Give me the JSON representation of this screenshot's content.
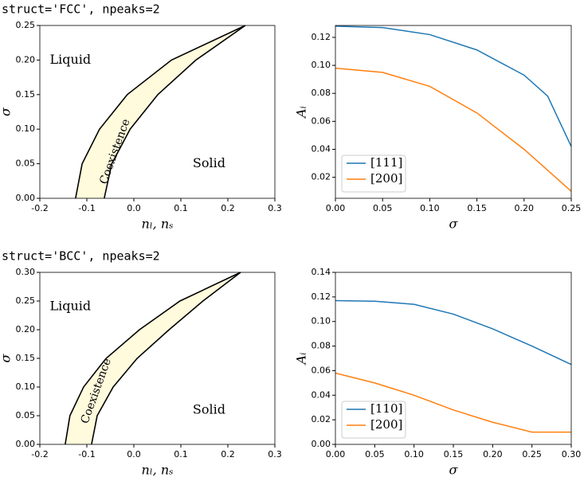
{
  "section_titles": [
    "struct='FCC', npeaks=2",
    "struct='BCC', npeaks=2"
  ],
  "chart_data": [
    {
      "type": "phase",
      "xlabel": "nₗ, nₛ",
      "ylabel": "σ",
      "xlim": [
        -0.2,
        0.3
      ],
      "ylim": [
        0,
        0.25
      ],
      "xticks": [
        -0.2,
        -0.1,
        {
          "value": 0,
          "label": "0.0"
        },
        0.1,
        0.2,
        0.3
      ],
      "yticks": [
        {
          "value": 0,
          "label": "0.00"
        },
        0.05,
        {
          "value": 0.1,
          "label": "0.10"
        },
        0.15,
        {
          "value": 0.2,
          "label": "0.20"
        },
        0.25
      ],
      "fill_color": "#fffbdc",
      "annotations": [
        "Liquid",
        "Solid",
        "Coexistence"
      ],
      "series": [
        {
          "color": "#000000",
          "x": [
            -0.124,
            -0.11,
            -0.073,
            -0.014,
            0.08,
            0.237
          ],
          "values": [
            0,
            0.05,
            0.1,
            0.15,
            0.2,
            0.25
          ]
        },
        {
          "color": "#000000",
          "x": [
            -0.063,
            -0.047,
            -0.008,
            0.051,
            0.132,
            0.237
          ],
          "values": [
            0,
            0.05,
            0.1,
            0.15,
            0.2,
            0.25
          ]
        }
      ]
    },
    {
      "type": "line",
      "xlabel": "σ",
      "ylabel": "Aᵢ",
      "xlim": [
        0,
        0.25
      ],
      "ylim": [
        0.005,
        0.1285
      ],
      "xticks": [
        {
          "value": 0,
          "label": "0.00"
        },
        0.05,
        {
          "value": 0.1,
          "label": "0.10"
        },
        0.15,
        {
          "value": 0.2,
          "label": "0.20"
        },
        0.25
      ],
      "yticks": [
        0.02,
        0.04,
        0.06,
        0.08,
        {
          "value": 0.1,
          "label": "0.10"
        },
        0.12
      ],
      "legend": "lower left",
      "series": [
        {
          "name": "[111]",
          "color": "#1f77b4",
          "x": [
            0,
            0.05,
            0.1,
            0.15,
            0.2,
            0.225,
            0.25
          ],
          "values": [
            0.128,
            0.127,
            0.122,
            0.111,
            0.093,
            0.078,
            0.042
          ]
        },
        {
          "name": "[200]",
          "color": "#ff7f0e",
          "x": [
            0,
            0.05,
            0.1,
            0.15,
            0.2,
            0.25
          ],
          "values": [
            0.098,
            0.095,
            0.085,
            0.066,
            0.04,
            0.01
          ]
        }
      ]
    },
    {
      "type": "phase",
      "xlabel": "nₗ, nₛ",
      "ylabel": "σ",
      "xlim": [
        -0.2,
        0.3
      ],
      "ylim": [
        0,
        0.3
      ],
      "xticks": [
        -0.2,
        -0.1,
        {
          "value": 0,
          "label": "0.0"
        },
        0.1,
        0.2,
        0.3
      ],
      "yticks": [
        {
          "value": 0,
          "label": "0.00"
        },
        0.05,
        {
          "value": 0.1,
          "label": "0.10"
        },
        0.15,
        {
          "value": 0.2,
          "label": "0.20"
        },
        0.25,
        {
          "value": 0.3,
          "label": "0.30"
        }
      ],
      "fill_color": "#fffbdc",
      "annotations": [
        "Liquid",
        "Solid",
        "Coexistence"
      ],
      "series": [
        {
          "color": "#000000",
          "x": [
            -0.146,
            -0.136,
            -0.107,
            -0.059,
            0.012,
            0.098,
            0.227
          ],
          "values": [
            0,
            0.05,
            0.1,
            0.15,
            0.2,
            0.25,
            0.3
          ]
        },
        {
          "color": "#000000",
          "x": [
            -0.09,
            -0.078,
            -0.044,
            0.007,
            0.075,
            0.147,
            0.227
          ],
          "values": [
            0,
            0.05,
            0.1,
            0.15,
            0.2,
            0.25,
            0.3
          ]
        }
      ]
    },
    {
      "type": "line",
      "xlabel": "σ",
      "ylabel": "Aᵢ",
      "xlim": [
        0,
        0.3
      ],
      "ylim": [
        0,
        0.14
      ],
      "xticks": [
        {
          "value": 0,
          "label": "0.00"
        },
        0.05,
        {
          "value": 0.1,
          "label": "0.10"
        },
        0.15,
        {
          "value": 0.2,
          "label": "0.20"
        },
        0.25,
        {
          "value": 0.3,
          "label": "0.30"
        }
      ],
      "yticks": [
        {
          "value": 0,
          "label": "0.00"
        },
        0.02,
        0.04,
        0.06,
        0.08,
        {
          "value": 0.1,
          "label": "0.10"
        },
        0.12,
        0.14
      ],
      "legend": "lower left",
      "series": [
        {
          "name": "[110]",
          "color": "#1f77b4",
          "x": [
            0,
            0.05,
            0.1,
            0.15,
            0.2,
            0.25,
            0.3
          ],
          "values": [
            0.117,
            0.1165,
            0.114,
            0.106,
            0.094,
            0.08,
            0.065
          ]
        },
        {
          "name": "[200]",
          "color": "#ff7f0e",
          "x": [
            0,
            0.05,
            0.1,
            0.15,
            0.2,
            0.25,
            0.3
          ],
          "values": [
            0.058,
            0.05,
            0.04,
            0.028,
            0.018,
            0.01,
            0.01
          ]
        }
      ]
    }
  ]
}
